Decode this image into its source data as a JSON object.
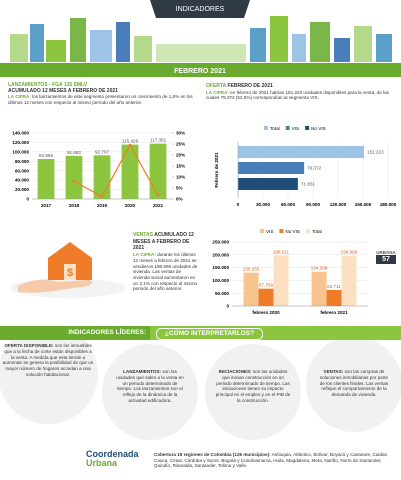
{
  "header": {
    "title": "INDICADORES",
    "band": "FEBRERO 2021"
  },
  "lanzamientos": {
    "heading": "LANZAMIENTOS - FGA 135 SMLV",
    "subheading": "ACUMULADO 12 MESES A FEBRERO DE 2021",
    "cifra_label": "LA CIFRA:",
    "cifra_text": "los lanzamientos de este segmento presentaron un crecimiento de 1,8% en los últimos 12 meses con respecto al mismo período del año anterior."
  },
  "oferta": {
    "heading": "OFERTA",
    "heading_rest": "FEBRERO DE 2021",
    "cifra_label": "LA CIFRA:",
    "cifra_text": "en febrero de 2021 habían 151.223 unidades disponibles para la venta, de las cuales 79.372 (52,5%) correspondían al segmento VIS."
  },
  "ventas": {
    "heading": "VENTAS",
    "heading_rest": "ACUMULADO 12 MESES A FEBRERO DE 2021",
    "cifra_label": "LA CIFRA:",
    "cifra_text": "durante los últimos 12 meses a febrero de 2021 se vendieron 196.969 unidades de vivienda. Las ventas de vivienda social aumentaron en un 3,1% con respecto al mismo periodo del año anterior."
  },
  "page_tag": {
    "label": "URBANA",
    "number": "57"
  },
  "leaders": {
    "title": "INDICADORES LÍDERES:",
    "subtitle": "¿CÓMO INTERPRETARLOS?",
    "items": [
      {
        "term": "OFERTA DISPONIBLE:",
        "text": "son los inmuebles que a la fecha de corte están disponibles a la venta. A medida que esta tiende a aumentar se genera la posibilidad de que un mayor número de hogares accedan a una solución habitacional."
      },
      {
        "term": "LANZAMIENTOS:",
        "text": "son las unidades que salen a la venta en un periodo determinado de tiempo. Los lanzamientos son el reflejo de la dinámica de la actividad edificadora."
      },
      {
        "term": "INICIACIONES:",
        "text": "son las unidades que inician construcción en un periodo determinado de tiempo. Las iniciaciones tienen su impacto principal en el empleo y en el PIB de la construcción."
      },
      {
        "term": "VENTAS:",
        "text": "son las compras de soluciones inmobiliarias por parte de los clientes finales. Las ventas reflejan el comportamiento de la demanda de vivienda."
      }
    ]
  },
  "footer": {
    "logo_line1": "Coordenada",
    "logo_line2": "Urbana",
    "coverage_label": "Cobertura 19 regiones de Colombia (126 municipios):",
    "coverage_text": "Antioquia, Atlántico, Bolívar, Boyacá y Casanare, Caldas, Cauca, Cesar, Córdoba y Sucre, Bogotá y Cundinamarca, Huila, Magdalena, Meta, Nariño, Norte de Santander, Quindío, Risaralda, Santander, Tolima y Valle."
  },
  "chart_data": [
    {
      "type": "bar",
      "categories": [
        "2017",
        "2018",
        "2019",
        "2020",
        "2021"
      ],
      "series": [
        {
          "type": "bar",
          "color": "#8cc63f",
          "values": [
            84888,
            91682,
            92707,
            115429,
            117381
          ],
          "value_labels": [
            "84.888",
            "91.682",
            "92.707",
            "115.429",
            "117.381"
          ]
        },
        {
          "type": "line",
          "axis": "y2",
          "color": "#f47b20",
          "values": [
            null,
            8.0,
            1.1,
            24.5,
            1.8
          ]
        }
      ],
      "ylim": [
        0,
        140000
      ],
      "yticks": [
        0,
        {
          "value": 20000,
          "label": "20.000"
        },
        {
          "value": 40000,
          "label": "40.000"
        },
        {
          "value": 60000,
          "label": "60.000"
        },
        {
          "value": 80000,
          "label": "80.000"
        },
        {
          "value": 100000,
          "label": "100.000"
        },
        {
          "value": 120000,
          "label": "120.000"
        },
        {
          "value": 140000,
          "label": "140.000"
        }
      ],
      "y2lim": [
        0,
        30
      ],
      "y2ticks": [
        {
          "value": 0,
          "label": "0%"
        },
        {
          "value": 5,
          "label": "5%"
        },
        {
          "value": 10,
          "label": "10%"
        },
        {
          "value": 15,
          "label": "15%"
        },
        {
          "value": 20,
          "label": "20%"
        },
        {
          "value": 25,
          "label": "25%"
        },
        {
          "value": 30,
          "label": "30%"
        }
      ],
      "grid": true
    },
    {
      "type": "barh",
      "y_label": "Febrero de 2021",
      "series": [
        {
          "name": "Total",
          "color": "#9dc3e6",
          "values": [
            151223
          ],
          "value_labels": [
            "151.223"
          ]
        },
        {
          "name": "VIS",
          "color": "#4a7ebb",
          "values": [
            79372
          ],
          "value_labels": [
            "79.372"
          ]
        },
        {
          "name": "No VIS",
          "color": "#1f4e79",
          "values": [
            71851
          ],
          "value_labels": [
            "71.851"
          ]
        }
      ],
      "xlim": [
        0,
        180000
      ],
      "xticks": [
        0,
        {
          "value": 30000,
          "label": "30.000"
        },
        {
          "value": 60000,
          "label": "60.000"
        },
        {
          "value": 90000,
          "label": "90.000"
        },
        {
          "value": 120000,
          "label": "120.000"
        },
        {
          "value": 150000,
          "label": "150.000"
        },
        {
          "value": 180000,
          "label": "180.000"
        }
      ],
      "grid": true
    },
    {
      "type": "grouped_bar",
      "categories": [
        "febrero 2020",
        "febrero 2021"
      ],
      "series": [
        {
          "name": "VIS",
          "color": "#f9c38f",
          "values": [
            130255,
            134258
          ],
          "value_labels": [
            "130.255",
            "134.258"
          ]
        },
        {
          "name": "No VIS",
          "color": "#f07c2a",
          "values": [
            67756,
            62711
          ],
          "value_labels": [
            "67.756",
            "62.711"
          ]
        },
        {
          "name": "Total",
          "color": "#fde0c2",
          "values": [
            198011,
            196969
          ],
          "value_labels": [
            "198.011",
            "196.969"
          ]
        }
      ],
      "ylim": [
        0,
        250000
      ],
      "yticks": [
        0,
        {
          "value": 50000,
          "label": "50.000"
        },
        {
          "value": 100000,
          "label": "100.000"
        },
        {
          "value": 150000,
          "label": "150.000"
        },
        {
          "value": 200000,
          "label": "200.000"
        },
        {
          "value": 250000,
          "label": "250.000"
        }
      ],
      "grid": true
    }
  ]
}
